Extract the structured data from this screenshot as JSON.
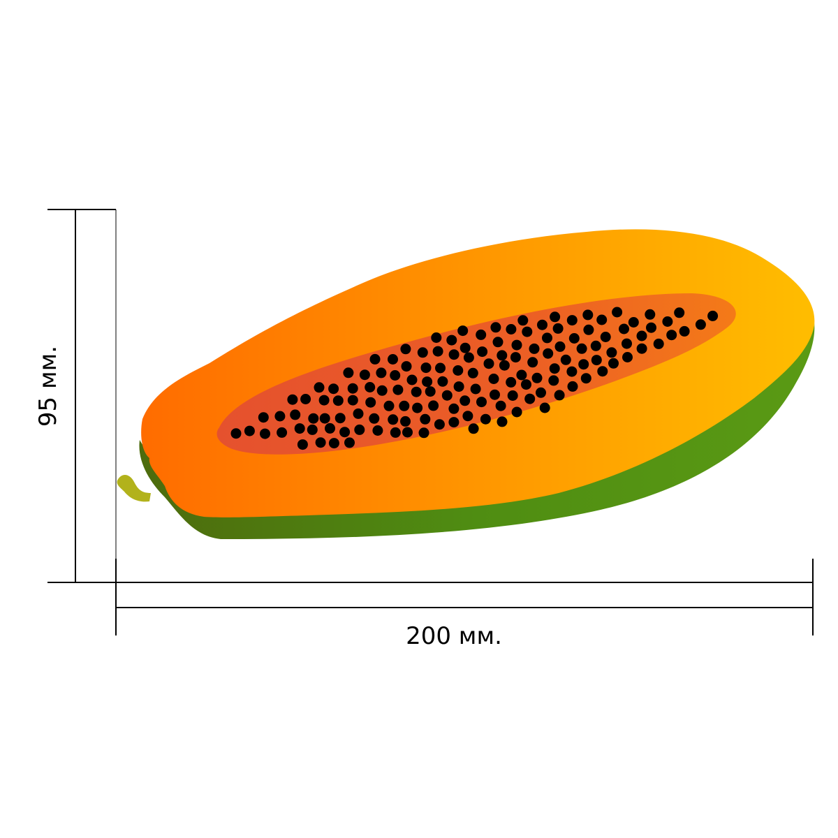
{
  "dimensions": {
    "height_label": "95 мм.",
    "width_label": "200 мм."
  },
  "colors": {
    "flesh_light": "#ffb800",
    "flesh_dark": "#ff6a00",
    "cavity": "#e8562a",
    "skin_green": "#4f8f10",
    "seed": "#000000",
    "stem": "#b5b51a"
  }
}
